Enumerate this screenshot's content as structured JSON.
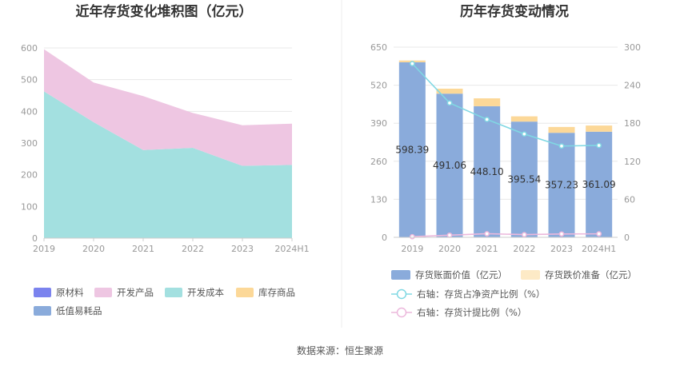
{
  "source_label": "数据来源：恒生聚源",
  "chart_data": [
    {
      "type": "area",
      "stacked": true,
      "title": "近年存货变化堆积图（亿元）",
      "categories": [
        "2019",
        "2020",
        "2021",
        "2022",
        "2023",
        "2024H1"
      ],
      "ylim": [
        0,
        600
      ],
      "yticks": [
        "0",
        "100",
        "200",
        "300",
        "400",
        "500",
        "600"
      ],
      "series": [
        {
          "name": "原材料",
          "color": "#7b83ee",
          "values": [
            0,
            0,
            0,
            0,
            0,
            0
          ]
        },
        {
          "name": "开发产品",
          "color": "#eec6e2",
          "values": [
            133,
            125,
            170,
            110,
            128,
            130
          ]
        },
        {
          "name": "开发成本",
          "color": "#a3e0e0",
          "values": [
            463,
            366,
            278,
            285,
            228,
            231
          ]
        },
        {
          "name": "库存商品",
          "color": "#fcd898",
          "values": [
            0,
            0,
            0,
            0,
            0,
            0
          ]
        },
        {
          "name": "低值易耗品",
          "color": "#8aabdb",
          "values": [
            0,
            0,
            0,
            0,
            0,
            0
          ]
        }
      ]
    },
    {
      "type": "bar",
      "title": "历年存货变动情况",
      "categories": [
        "2019",
        "2020",
        "2021",
        "2022",
        "2023",
        "2024H1"
      ],
      "ylim_left": [
        0,
        650
      ],
      "yticks_left": [
        "0",
        "130",
        "260",
        "390",
        "520",
        "650"
      ],
      "ylim_right": [
        0,
        300
      ],
      "yticks_right": [
        "0",
        "60",
        "120",
        "180",
        "240",
        "300"
      ],
      "bars": [
        {
          "name": "存货账面价值（亿元）",
          "color": "#8aabdb",
          "values": [
            598.39,
            491.06,
            448.1,
            395.54,
            357.23,
            361.09
          ],
          "labels": [
            "598.39",
            "491.06",
            "448.10",
            "395.54",
            "357.23",
            "361.09"
          ]
        },
        {
          "name": "存货跌价准备（亿元）",
          "color": "#fcd898",
          "values": [
            6,
            17,
            27,
            18,
            20,
            21
          ]
        }
      ],
      "lines": [
        {
          "name": "右轴：存货占净资产比例（%）",
          "color": "#80d8e3",
          "values": [
            274,
            212,
            186,
            163,
            144,
            145
          ]
        },
        {
          "name": "右轴：存货计提比例（%）",
          "color": "#ecb8dc",
          "values": [
            1,
            3.4,
            5.7,
            4.3,
            5.3,
            5.5
          ]
        }
      ]
    }
  ]
}
